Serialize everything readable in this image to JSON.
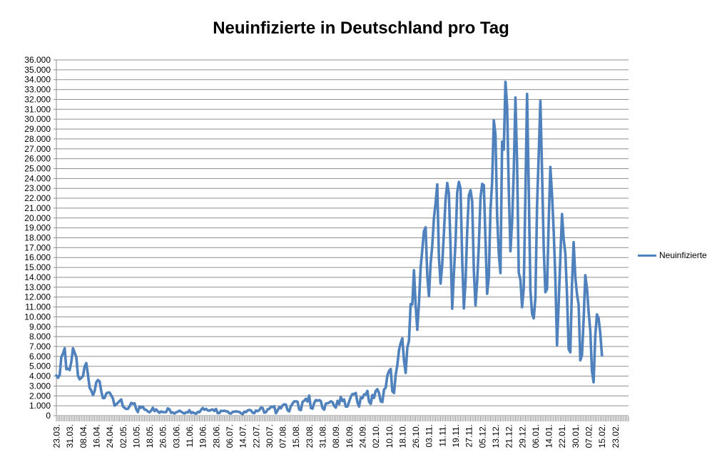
{
  "title": "Neuinfizierte in Deutschland pro Tag",
  "legend": {
    "label": "Neuinfizierte"
  },
  "colors": {
    "line": "#4F81BD",
    "gridline": "#8F8F8F",
    "axis": "#8F8F8F",
    "text": "#000000",
    "background": "#FFFFFF"
  },
  "chart_data": {
    "type": "line",
    "title": "Neuinfizierte in Deutschland pro Tag",
    "xlabel": "",
    "ylabel": "",
    "y_min": 0,
    "y_max": 36000,
    "y_step": 1000,
    "grid": true,
    "legend_position": "right",
    "y_tick_labels": [
      "0",
      "1.000",
      "2.000",
      "3.000",
      "4.000",
      "5.000",
      "6.000",
      "7.000",
      "8.000",
      "9.000",
      "10.000",
      "11.000",
      "12.000",
      "13.000",
      "14.000",
      "15.000",
      "16.000",
      "17.000",
      "18.000",
      "19.000",
      "20.000",
      "21.000",
      "22.000",
      "23.000",
      "24.000",
      "25.000",
      "26.000",
      "27.000",
      "28.000",
      "29.000",
      "30.000",
      "31.000",
      "32.000",
      "33.000",
      "34.000",
      "35.000",
      "36.000"
    ],
    "x_tick_labels": [
      "23.03.",
      "31.03.",
      "08.04.",
      "16.04.",
      "24.04.",
      "02.05.",
      "10.05.",
      "18.05.",
      "26.05.",
      "03.06.",
      "11.06.",
      "19.06.",
      "28.06.",
      "06.07.",
      "14.07.",
      "22.07.",
      "30.07.",
      "07.08.",
      "15.08.",
      "23.08.",
      "31.08.",
      "08.09.",
      "16.09.",
      "24.09.",
      "02.10.",
      "10.10.",
      "18.10.",
      "26.10.",
      "03.11.",
      "11.11.",
      "19.11.",
      "27.11.",
      "05.12.",
      "13.12.",
      "21.12.",
      "29.12.",
      "06.01.",
      "14.01.",
      "22.01.",
      "30.01.",
      "07.02.",
      "15.02.",
      "23.02."
    ],
    "x_label_every": 8,
    "x_total_slots": 344,
    "x_unit": "day",
    "series": [
      {
        "name": "Neuinfizierte",
        "color": "#4F81BD",
        "values": [
          4062,
          3834,
          4118,
          5940,
          6294,
          6824,
          4705,
          4751,
          4615,
          5453,
          6813,
          6365,
          5936,
          4031,
          3677,
          3834,
          4003,
          4974,
          5323,
          4133,
          2821,
          2537,
          2082,
          2486,
          3380,
          3609,
          3456,
          2458,
          1775,
          1785,
          2237,
          2352,
          2337,
          2055,
          1737,
          1018,
          1144,
          1304,
          1478,
          1639,
          945,
          793,
          679,
          685,
          947,
          1284,
          1209,
          1251,
          667,
          357,
          933,
          798,
          913,
          620,
          583,
          431,
          342,
          513,
          797,
          460,
          638,
          431,
          289,
          432,
          362,
          353,
          362,
          741,
          638,
          286,
          333,
          213,
          342,
          394,
          507,
          407,
          301,
          214,
          350,
          318,
          555,
          258,
          348,
          247,
          192,
          378,
          345,
          580,
          770,
          601,
          687,
          537,
          503,
          587,
          630,
          477,
          687,
          256,
          262,
          498,
          466,
          503,
          446,
          422,
          239,
          219,
          390,
          397,
          442,
          395,
          378,
          248,
          159,
          412,
          351,
          534,
          583,
          529,
          305,
          249,
          522,
          454,
          569,
          815,
          781,
          305,
          340,
          633,
          684,
          902,
          870,
          955,
          240,
          509,
          879,
          741,
          1045,
          1147,
          1122,
          555,
          436,
          966,
          1226,
          1445,
          1449,
          1415,
          625,
          561,
          1390,
          1510,
          1707,
          1427,
          2034,
          782,
          711,
          1278,
          1576,
          1507,
          1571,
          1479,
          785,
          610,
          1218,
          1256,
          1311,
          1453,
          1378,
          988,
          814,
          1499,
          1176,
          1892,
          1484,
          1630,
          920,
          927,
          1407,
          1901,
          2194,
          2179,
          2297,
          1345,
          922,
          1821,
          1769,
          2143,
          2153,
          2507,
          1411,
          1192,
          2089,
          1798,
          2503,
          2673,
          2279,
          1450,
          1382,
          2639,
          2828,
          4058,
          4516,
          4721,
          2467,
          2297,
          4122,
          5132,
          6638,
          7334,
          7830,
          5587,
          4325,
          6868,
          7595,
          11287,
          11242,
          14714,
          11176,
          8685,
          11409,
          14964,
          16774,
          18681,
          19059,
          14177,
          12097,
          15352,
          17214,
          19990,
          21506,
          23399,
          16017,
          13363,
          15332,
          18487,
          21866,
          23542,
          22461,
          16947,
          10824,
          14419,
          17561,
          22609,
          23648,
          22964,
          15741,
          10864,
          13554,
          18633,
          22268,
          22806,
          21695,
          14611,
          11169,
          13604,
          17270,
          22046,
          23449,
          23318,
          17767,
          12332,
          14054,
          20815,
          23679,
          29875,
          28438,
          20200,
          16362,
          14432,
          27728,
          26923,
          33777,
          31300,
          22771,
          16643,
          19528,
          24740,
          32195,
          25533,
          14455,
          13755,
          10976,
          12892,
          22459,
          32552,
          22924,
          12690,
          10315,
          9847,
          11897,
          21237,
          26391,
          31849,
          24694,
          16946,
          12497,
          12802,
          19600,
          25164,
          22368,
          18678,
          13882,
          7141,
          11369,
          15974,
          20398,
          17862,
          16417,
          12257,
          6729,
          6412,
          13202,
          17553,
          14022,
          12321,
          11192,
          5608,
          6114,
          9705,
          14211,
          12908,
          10485,
          8616,
          4535,
          3379,
          8072,
          10237,
          9860,
          8354,
          6114
        ]
      }
    ]
  }
}
